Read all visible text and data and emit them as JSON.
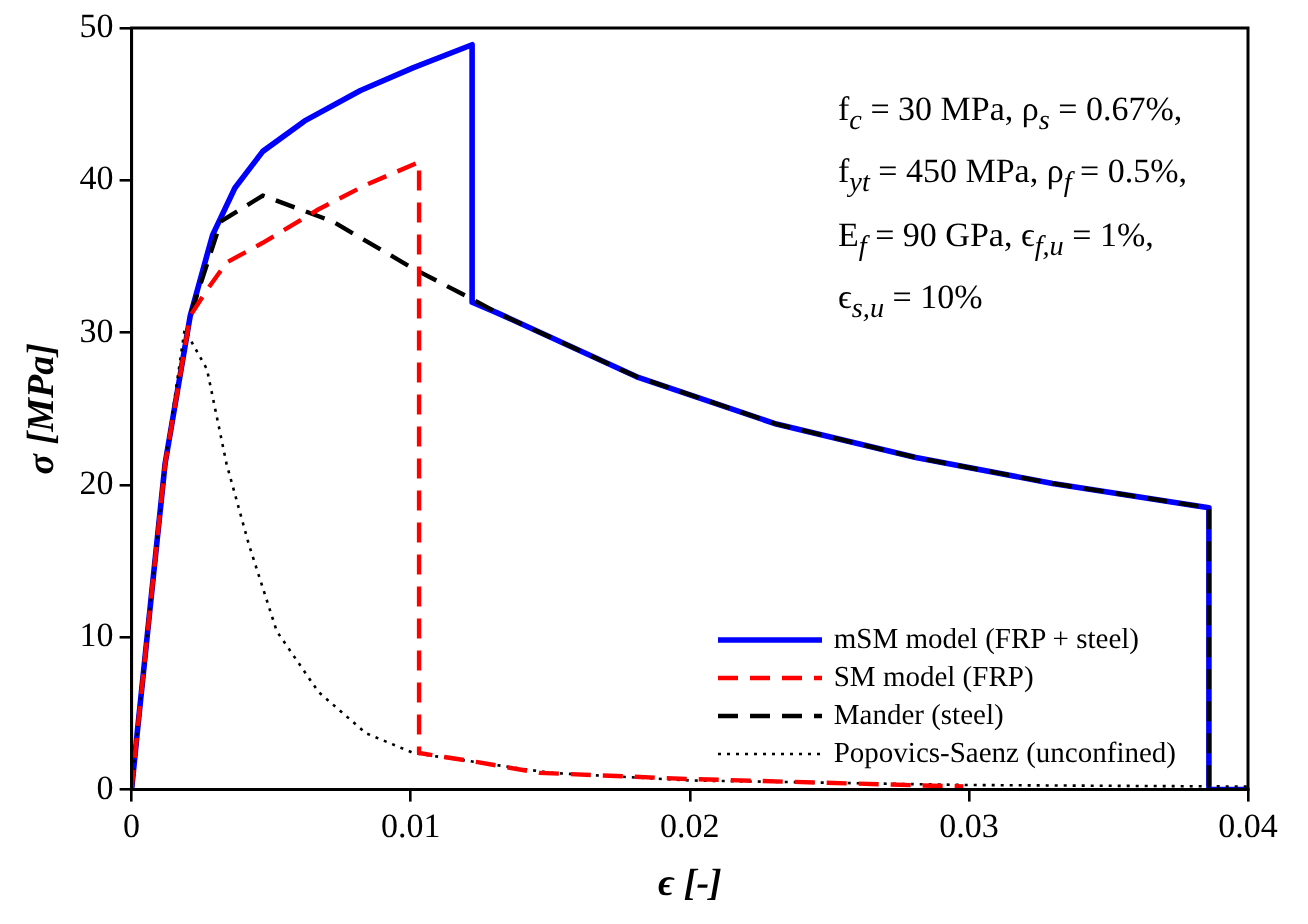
{
  "chart_data": {
    "type": "line",
    "xlabel": "ϵ [-]",
    "ylabel": "σ [MPa]",
    "xlim": [
      0,
      0.04
    ],
    "xticks": [
      0,
      0.01,
      0.02,
      0.03,
      0.04
    ],
    "ylim": [
      0,
      50
    ],
    "yticks": [
      0,
      10,
      20,
      30,
      40,
      50
    ],
    "grid": false,
    "legend": "bottom right",
    "marker": "none",
    "annotations": [
      "f$_{c}$ = 30 MPa, ρ$_{s}$ = 0.67%,",
      "f$_{yt}$ = 450 MPa, ρ$_{f}$ = 0.5%,",
      "E$_{f}$ = 90 GPa, ϵ$_{f,u}$ = 1%,",
      "ϵ$_{s,u}$ = 10%"
    ],
    "series": [
      {
        "name": "mSM model (FRP + steel)",
        "color": "#0000ff",
        "line_style": "solid",
        "x": [
          0,
          0.0002,
          0.0007,
          0.0012,
          0.0021,
          0.0029,
          0.0037,
          0.0047,
          0.0062,
          0.0082,
          0.0101,
          0.0122,
          0.0122,
          0.0131,
          0.0181,
          0.0231,
          0.0281,
          0.033,
          0.0386,
          0.0386,
          0.04
        ],
        "values": [
          0,
          3.7,
          12.6,
          21.4,
          31.1,
          36.4,
          39.5,
          41.9,
          43.9,
          45.9,
          47.4,
          48.9,
          32.0,
          31.3,
          27.1,
          24.0,
          21.8,
          20.1,
          18.5,
          0,
          0
        ]
      },
      {
        "name": "SM model (FRP)",
        "color": "#ff0000",
        "line_style": "dashed",
        "x": [
          0,
          0.0002,
          0.0007,
          0.0012,
          0.0021,
          0.0027,
          0.0034,
          0.0047,
          0.0067,
          0.0084,
          0.0103,
          0.0103,
          0.0124,
          0.0146,
          0.0199,
          0.0298
        ],
        "values": [
          0,
          3.7,
          12.6,
          21.4,
          31.1,
          32.8,
          34.6,
          35.9,
          38.1,
          39.7,
          41.2,
          2.4,
          1.8,
          1.1,
          0.7,
          0.2
        ]
      },
      {
        "name": "Mander (steel)",
        "color": "#000000",
        "line_style": "dashed",
        "x": [
          0,
          0.0002,
          0.0007,
          0.0012,
          0.0021,
          0.0032,
          0.0047,
          0.0072,
          0.0101,
          0.0122,
          0.0131,
          0.0181,
          0.0231,
          0.0281,
          0.033,
          0.0386,
          0.0386
        ],
        "values": [
          0,
          3.7,
          12.6,
          21.4,
          31.1,
          37.3,
          39.0,
          37.3,
          34.2,
          32.2,
          31.3,
          27.1,
          24.0,
          21.8,
          20.1,
          18.5,
          0
        ]
      },
      {
        "name": "Popovics-Saenz (unconfined)",
        "color": "#000000",
        "line_style": "dotted",
        "x": [
          0,
          0.0002,
          0.0007,
          0.0012,
          0.0019,
          0.0027,
          0.0034,
          0.0042,
          0.0052,
          0.0067,
          0.0084,
          0.0101,
          0.015,
          0.02,
          0.03,
          0.04
        ],
        "values": [
          0,
          3.7,
          12.6,
          21.4,
          30.2,
          27.6,
          21.4,
          16.1,
          10.4,
          6.4,
          3.7,
          2.4,
          1.1,
          0.6,
          0.3,
          0.2
        ]
      }
    ]
  }
}
